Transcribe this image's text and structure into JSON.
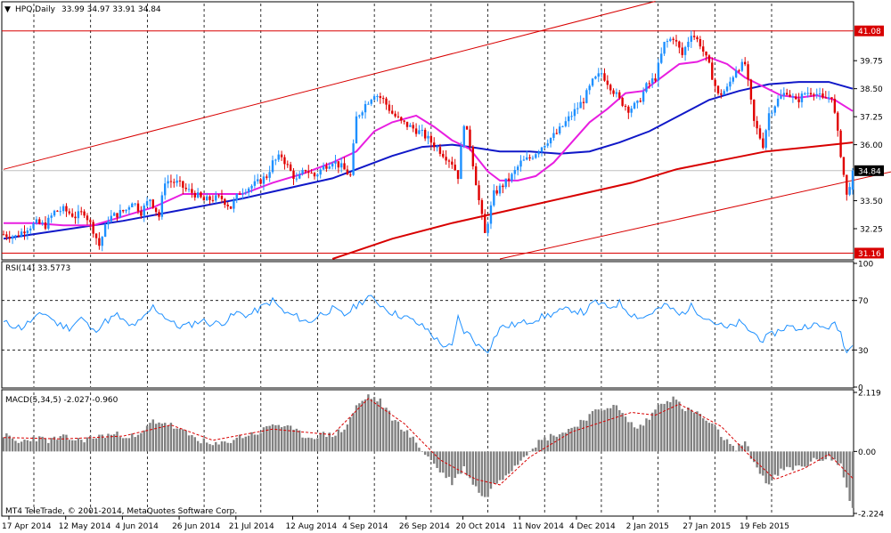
{
  "header": {
    "symbol_label": "HPQ,Daily",
    "ohlc_label": "33.99 34.97 33.91 34.84",
    "menu_icon": "triangle-down-icon"
  },
  "rsi": {
    "label": "RSI(14) 33.5773"
  },
  "macd": {
    "label": "MACD(5,34,5) -2.027 -0.960"
  },
  "copyright": "MT4 TeleTrade, © 2001-2014, MetaQuotes Software Corp.",
  "colors": {
    "bull_candle": "#1e90ff",
    "bear_candle": "#e00000",
    "ma_fast": "#e81ee0",
    "ma_mid": "#1018c8",
    "ma_slow": "#d80000",
    "channel": "#d80000",
    "rsi_line": "#1e90ff",
    "macd_signal": "#d80000",
    "macd_hist": "#808080",
    "price_tag": "#d80000",
    "last_tag": "#000000"
  },
  "chart_data": [
    {
      "type": "candlestick",
      "title": "HPQ,Daily",
      "ylim": [
        30.9,
        42.3
      ],
      "y_ticks": [
        "41.08",
        "39.75",
        "38.50",
        "37.25",
        "36.00",
        "34.84",
        "33.50",
        "32.25",
        "31.16"
      ],
      "highlight_levels": {
        "41.08": "red",
        "34.84": "black",
        "31.16": "red"
      },
      "x_tick_labels": [
        "17 Apr 2014",
        "12 May 2014",
        "4 Jun 2014",
        "26 Jun 2014",
        "21 Jul 2014",
        "12 Aug 2014",
        "4 Sep 2014",
        "26 Sep 2014",
        "20 Oct 2014",
        "11 Nov 2014",
        "4 Dec 2014",
        "2 Jan 2015",
        "27 Jan 2015",
        "19 Feb 2015"
      ],
      "horizontal_lines": [
        41.08,
        31.16
      ],
      "close_path": [
        [
          0,
          32.0
        ],
        [
          4,
          31.9
        ],
        [
          8,
          32.3
        ],
        [
          11,
          32.5
        ],
        [
          14,
          32.4
        ],
        [
          17,
          33.0
        ],
        [
          20,
          33.1
        ],
        [
          24,
          32.8
        ],
        [
          27,
          33.0
        ],
        [
          30,
          32.2
        ],
        [
          32,
          31.5
        ],
        [
          35,
          32.7
        ],
        [
          38,
          32.9
        ],
        [
          41,
          33.1
        ],
        [
          43,
          33.5
        ],
        [
          46,
          33.0
        ],
        [
          49,
          33.6
        ],
        [
          52,
          32.8
        ],
        [
          54,
          34.4
        ],
        [
          58,
          34.3
        ],
        [
          61,
          34.0
        ],
        [
          64,
          33.8
        ],
        [
          67,
          33.5
        ],
        [
          70,
          33.6
        ],
        [
          73,
          33.6
        ],
        [
          76,
          33.2
        ],
        [
          79,
          33.9
        ],
        [
          82,
          34.1
        ],
        [
          85,
          34.3
        ],
        [
          88,
          34.6
        ],
        [
          90,
          35.2
        ],
        [
          93,
          35.5
        ],
        [
          96,
          34.8
        ],
        [
          98,
          34.4
        ],
        [
          101,
          34.9
        ],
        [
          104,
          34.6
        ],
        [
          107,
          35.0
        ],
        [
          110,
          35.3
        ],
        [
          113,
          35.0
        ],
        [
          116,
          34.6
        ],
        [
          118,
          37.2
        ],
        [
          121,
          37.8
        ],
        [
          124,
          38.3
        ],
        [
          127,
          38.0
        ],
        [
          130,
          37.4
        ],
        [
          133,
          37.0
        ],
        [
          136,
          36.8
        ],
        [
          140,
          36.5
        ],
        [
          144,
          36.0
        ],
        [
          147,
          35.6
        ],
        [
          150,
          35.2
        ],
        [
          152,
          34.6
        ],
        [
          154,
          37.0
        ],
        [
          156,
          36.0
        ],
        [
          159,
          33.5
        ],
        [
          161,
          32.0
        ],
        [
          164,
          33.8
        ],
        [
          167,
          34.2
        ],
        [
          170,
          34.6
        ],
        [
          173,
          35.2
        ],
        [
          176,
          35.4
        ],
        [
          179,
          35.8
        ],
        [
          182,
          36.2
        ],
        [
          185,
          36.5
        ],
        [
          188,
          37.0
        ],
        [
          191,
          37.5
        ],
        [
          194,
          38.0
        ],
        [
          197,
          38.8
        ],
        [
          200,
          39.2
        ],
        [
          203,
          38.6
        ],
        [
          206,
          38.0
        ],
        [
          209,
          37.6
        ],
        [
          212,
          37.8
        ],
        [
          215,
          38.6
        ],
        [
          218,
          39.0
        ],
        [
          221,
          40.5
        ],
        [
          224,
          40.8
        ],
        [
          227,
          40.0
        ],
        [
          230,
          41.0
        ],
        [
          233,
          40.5
        ],
        [
          236,
          39.5
        ],
        [
          239,
          38.2
        ],
        [
          242,
          38.5
        ],
        [
          245,
          39.4
        ],
        [
          248,
          39.6
        ],
        [
          251,
          37.0
        ],
        [
          254,
          36.0
        ],
        [
          256,
          37.4
        ],
        [
          259,
          38.0
        ],
        [
          262,
          38.4
        ],
        [
          265,
          37.9
        ],
        [
          268,
          38.3
        ],
        [
          271,
          38.4
        ],
        [
          274,
          38.0
        ],
        [
          277,
          38.2
        ],
        [
          280,
          35.6
        ],
        [
          282,
          33.7
        ],
        [
          284,
          34.84
        ]
      ],
      "ma_fast_path": [
        [
          0,
          32.5
        ],
        [
          10,
          32.5
        ],
        [
          20,
          32.4
        ],
        [
          30,
          32.4
        ],
        [
          40,
          32.8
        ],
        [
          50,
          33.2
        ],
        [
          60,
          33.8
        ],
        [
          70,
          33.8
        ],
        [
          80,
          33.8
        ],
        [
          90,
          34.3
        ],
        [
          100,
          34.7
        ],
        [
          110,
          35.2
        ],
        [
          118,
          35.7
        ],
        [
          124,
          36.6
        ],
        [
          130,
          37.0
        ],
        [
          138,
          37.3
        ],
        [
          144,
          36.8
        ],
        [
          150,
          36.2
        ],
        [
          156,
          35.8
        ],
        [
          162,
          34.8
        ],
        [
          166,
          34.4
        ],
        [
          172,
          34.4
        ],
        [
          178,
          34.6
        ],
        [
          184,
          35.2
        ],
        [
          190,
          36.1
        ],
        [
          196,
          37.0
        ],
        [
          202,
          37.6
        ],
        [
          208,
          38.3
        ],
        [
          214,
          38.4
        ],
        [
          220,
          39.0
        ],
        [
          226,
          39.6
        ],
        [
          232,
          39.7
        ],
        [
          236,
          39.9
        ],
        [
          242,
          39.6
        ],
        [
          248,
          39.0
        ],
        [
          254,
          38.6
        ],
        [
          260,
          38.2
        ],
        [
          266,
          38.1
        ],
        [
          272,
          38.2
        ],
        [
          278,
          38.0
        ],
        [
          284,
          37.5
        ]
      ],
      "ma_mid_path": [
        [
          0,
          31.8
        ],
        [
          20,
          32.2
        ],
        [
          40,
          32.6
        ],
        [
          60,
          33.1
        ],
        [
          80,
          33.6
        ],
        [
          100,
          34.2
        ],
        [
          110,
          34.5
        ],
        [
          120,
          35.0
        ],
        [
          130,
          35.5
        ],
        [
          140,
          35.9
        ],
        [
          150,
          36.0
        ],
        [
          156,
          35.9
        ],
        [
          166,
          35.7
        ],
        [
          176,
          35.7
        ],
        [
          186,
          35.6
        ],
        [
          196,
          35.7
        ],
        [
          206,
          36.1
        ],
        [
          216,
          36.6
        ],
        [
          226,
          37.3
        ],
        [
          236,
          38.0
        ],
        [
          246,
          38.4
        ],
        [
          256,
          38.7
        ],
        [
          266,
          38.8
        ],
        [
          276,
          38.8
        ],
        [
          284,
          38.5
        ]
      ],
      "ma_slow_path": [
        [
          110,
          30.9
        ],
        [
          130,
          31.8
        ],
        [
          150,
          32.5
        ],
        [
          170,
          33.1
        ],
        [
          190,
          33.7
        ],
        [
          210,
          34.3
        ],
        [
          225,
          34.9
        ],
        [
          240,
          35.3
        ],
        [
          255,
          35.7
        ],
        [
          270,
          35.9
        ],
        [
          284,
          36.1
        ]
      ],
      "channel_lines": [
        {
          "from": [
            0,
            34.9
          ],
          "to": [
            218,
            42.4
          ]
        },
        {
          "from": [
            166,
            30.9
          ],
          "to": [
            314,
            35.3
          ]
        }
      ]
    },
    {
      "type": "line",
      "title": "RSI(14) 33.5773",
      "ylim": [
        0,
        100
      ],
      "y_ticks": [
        "100",
        "70",
        "30",
        "0"
      ],
      "levels": [
        70,
        30
      ],
      "values_path": [
        [
          0,
          52
        ],
        [
          6,
          48
        ],
        [
          10,
          55
        ],
        [
          14,
          60
        ],
        [
          18,
          51
        ],
        [
          22,
          48
        ],
        [
          26,
          56
        ],
        [
          30,
          45
        ],
        [
          34,
          53
        ],
        [
          38,
          58
        ],
        [
          42,
          49
        ],
        [
          46,
          53
        ],
        [
          50,
          65
        ],
        [
          54,
          57
        ],
        [
          58,
          49
        ],
        [
          62,
          50
        ],
        [
          66,
          54
        ],
        [
          70,
          51
        ],
        [
          74,
          53
        ],
        [
          78,
          60
        ],
        [
          82,
          58
        ],
        [
          86,
          64
        ],
        [
          90,
          70
        ],
        [
          94,
          60
        ],
        [
          98,
          57
        ],
        [
          102,
          52
        ],
        [
          106,
          59
        ],
        [
          110,
          63
        ],
        [
          114,
          58
        ],
        [
          118,
          66
        ],
        [
          122,
          73
        ],
        [
          126,
          67
        ],
        [
          130,
          60
        ],
        [
          134,
          57
        ],
        [
          138,
          52
        ],
        [
          142,
          46
        ],
        [
          146,
          35
        ],
        [
          150,
          32
        ],
        [
          152,
          56
        ],
        [
          154,
          45
        ],
        [
          156,
          42
        ],
        [
          159,
          33
        ],
        [
          162,
          30
        ],
        [
          166,
          48
        ],
        [
          170,
          50
        ],
        [
          174,
          52
        ],
        [
          178,
          55
        ],
        [
          182,
          58
        ],
        [
          186,
          61
        ],
        [
          190,
          63
        ],
        [
          194,
          60
        ],
        [
          198,
          69
        ],
        [
          202,
          64
        ],
        [
          206,
          68
        ],
        [
          210,
          59
        ],
        [
          214,
          56
        ],
        [
          218,
          62
        ],
        [
          222,
          66
        ],
        [
          226,
          58
        ],
        [
          230,
          65
        ],
        [
          234,
          58
        ],
        [
          238,
          52
        ],
        [
          242,
          47
        ],
        [
          246,
          52
        ],
        [
          250,
          45
        ],
        [
          254,
          38
        ],
        [
          258,
          44
        ],
        [
          262,
          49
        ],
        [
          266,
          47
        ],
        [
          270,
          51
        ],
        [
          274,
          48
        ],
        [
          278,
          50
        ],
        [
          280,
          44
        ],
        [
          282,
          28
        ],
        [
          284,
          33.58
        ]
      ]
    },
    {
      "type": "bar",
      "title": "MACD(5,34,5) -2.027 -0.960",
      "ylim": [
        -2.224,
        2.119
      ],
      "y_ticks": [
        "2.119",
        "0.00",
        "-2.224"
      ],
      "histogram_path": [
        [
          0,
          0.6
        ],
        [
          5,
          0.3
        ],
        [
          10,
          0.5
        ],
        [
          15,
          0.4
        ],
        [
          20,
          0.5
        ],
        [
          25,
          0.4
        ],
        [
          30,
          0.5
        ],
        [
          35,
          0.6
        ],
        [
          40,
          0.6
        ],
        [
          45,
          0.5
        ],
        [
          50,
          1.1
        ],
        [
          55,
          1.0
        ],
        [
          58,
          0.8
        ],
        [
          62,
          0.6
        ],
        [
          66,
          0.4
        ],
        [
          70,
          0.2
        ],
        [
          74,
          0.3
        ],
        [
          78,
          0.5
        ],
        [
          82,
          0.6
        ],
        [
          86,
          0.7
        ],
        [
          90,
          1.0
        ],
        [
          94,
          0.9
        ],
        [
          98,
          0.7
        ],
        [
          102,
          0.5
        ],
        [
          106,
          0.6
        ],
        [
          110,
          0.6
        ],
        [
          114,
          0.8
        ],
        [
          118,
          1.6
        ],
        [
          122,
          2.0
        ],
        [
          126,
          1.8
        ],
        [
          130,
          1.2
        ],
        [
          134,
          0.8
        ],
        [
          138,
          0.3
        ],
        [
          142,
          -0.2
        ],
        [
          146,
          -0.7
        ],
        [
          150,
          -1.1
        ],
        [
          154,
          -0.6
        ],
        [
          158,
          -1.3
        ],
        [
          161,
          -1.7
        ],
        [
          164,
          -1.2
        ],
        [
          168,
          -0.8
        ],
        [
          172,
          -0.4
        ],
        [
          176,
          0.1
        ],
        [
          180,
          0.4
        ],
        [
          184,
          0.6
        ],
        [
          188,
          0.7
        ],
        [
          192,
          1.0
        ],
        [
          196,
          1.3
        ],
        [
          200,
          1.5
        ],
        [
          204,
          1.7
        ],
        [
          208,
          1.2
        ],
        [
          212,
          0.8
        ],
        [
          216,
          1.2
        ],
        [
          220,
          1.8
        ],
        [
          224,
          1.9
        ],
        [
          228,
          1.5
        ],
        [
          232,
          1.4
        ],
        [
          236,
          1.0
        ],
        [
          240,
          0.6
        ],
        [
          244,
          0.1
        ],
        [
          248,
          0.3
        ],
        [
          252,
          -0.6
        ],
        [
          256,
          -1.2
        ],
        [
          260,
          -0.7
        ],
        [
          264,
          -0.6
        ],
        [
          268,
          -0.5
        ],
        [
          272,
          -0.3
        ],
        [
          276,
          -0.2
        ],
        [
          280,
          -0.5
        ],
        [
          282,
          -1.3
        ],
        [
          284,
          -2.027
        ]
      ],
      "signal_path": [
        [
          0,
          0.5
        ],
        [
          20,
          0.45
        ],
        [
          40,
          0.55
        ],
        [
          56,
          0.95
        ],
        [
          70,
          0.4
        ],
        [
          90,
          0.8
        ],
        [
          110,
          0.6
        ],
        [
          122,
          1.9
        ],
        [
          134,
          1.0
        ],
        [
          146,
          -0.3
        ],
        [
          158,
          -1.0
        ],
        [
          166,
          -1.2
        ],
        [
          176,
          -0.2
        ],
        [
          190,
          0.7
        ],
        [
          210,
          1.4
        ],
        [
          218,
          1.3
        ],
        [
          226,
          1.7
        ],
        [
          240,
          0.9
        ],
        [
          250,
          -0.2
        ],
        [
          258,
          -1.0
        ],
        [
          268,
          -0.6
        ],
        [
          276,
          -0.1
        ],
        [
          284,
          -0.96
        ]
      ]
    }
  ]
}
